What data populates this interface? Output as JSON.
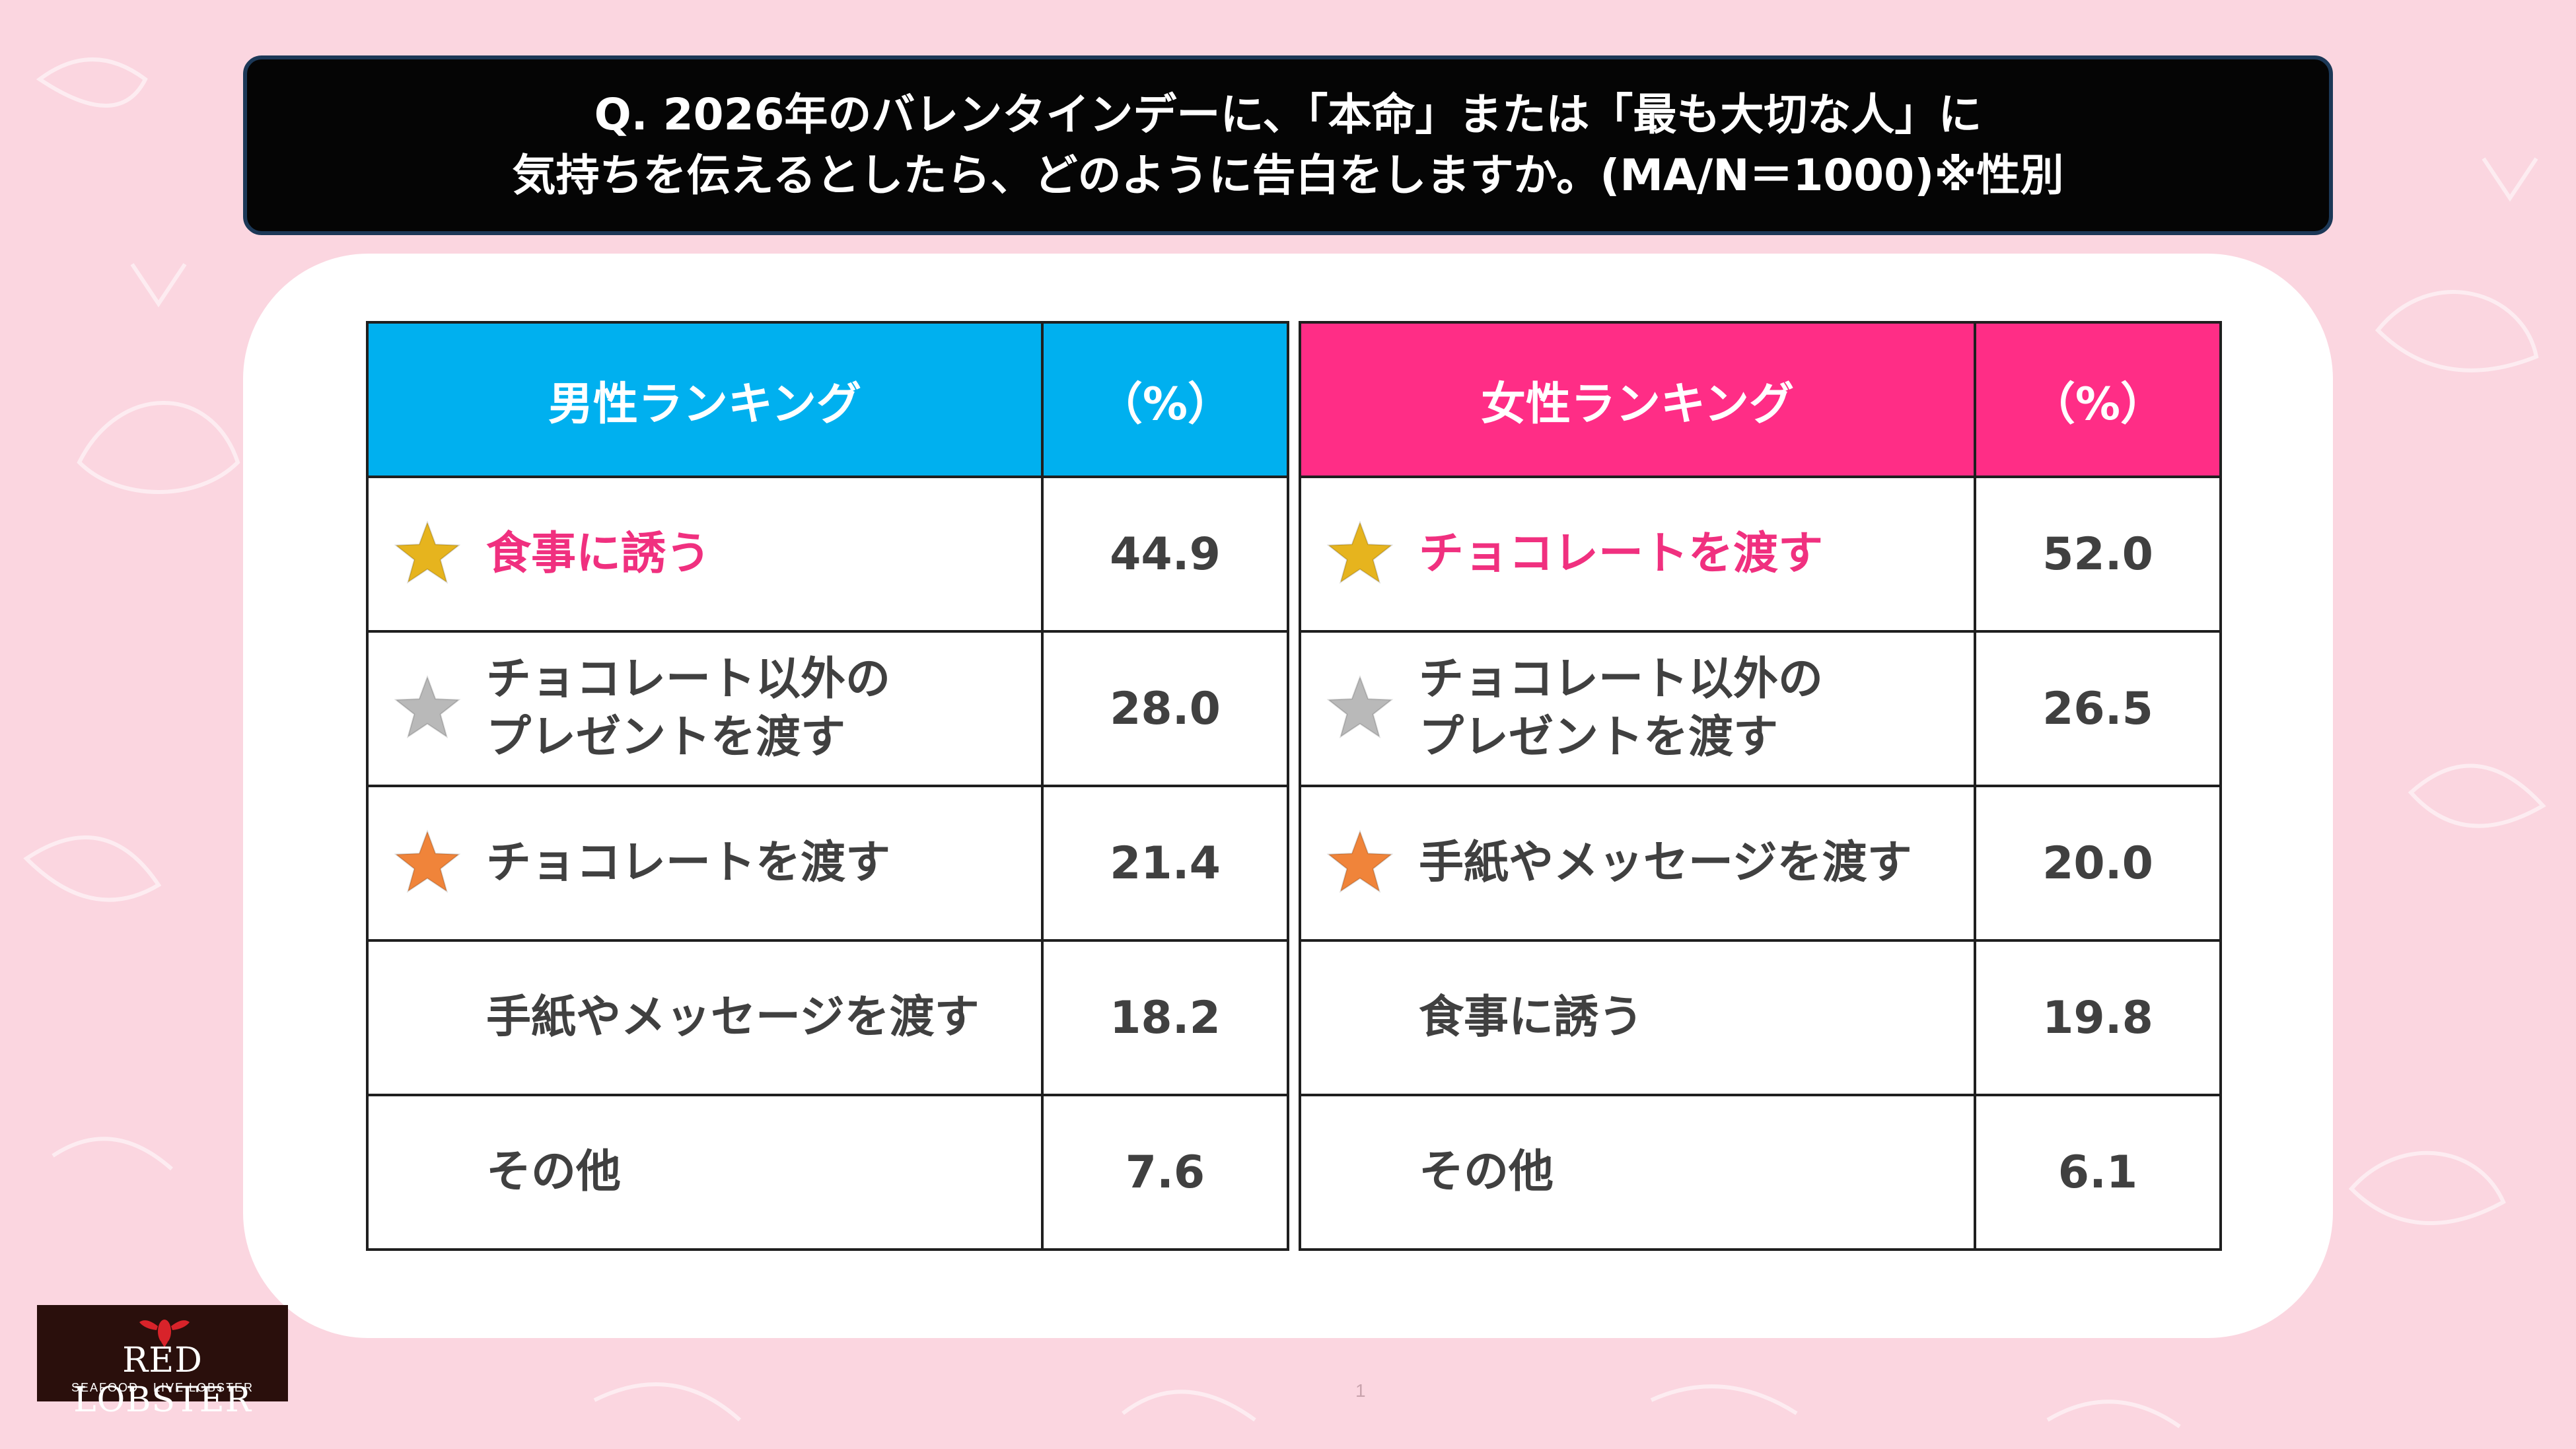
{
  "title": {
    "line1": "Q. 2026年のバレンタインデーに、「本命」または「最も大切な人」に",
    "line2": "気持ちを伝えるとしたら、どのように告白をしますか。(MA/N＝1000)※性別"
  },
  "chart_data": [
    {
      "type": "table",
      "title": "男性ランキング",
      "columns": [
        "男性ランキング",
        "（%）"
      ],
      "unit": "%",
      "header_color": "#00b0ef",
      "rows": [
        {
          "rank": 1,
          "medal": "gold",
          "label": "食事に誘う",
          "value": "44.9"
        },
        {
          "rank": 2,
          "medal": "silver",
          "label": "チョコレート以外の\nプレゼントを渡す",
          "value": "28.0"
        },
        {
          "rank": 3,
          "medal": "bronze",
          "label": "チョコレートを渡す",
          "value": "21.4"
        },
        {
          "rank": 4,
          "medal": "none",
          "label": "手紙やメッセージを渡す",
          "value": "18.2"
        },
        {
          "rank": 5,
          "medal": "none",
          "label": "その他",
          "value": "7.6"
        }
      ]
    },
    {
      "type": "table",
      "title": "女性ランキング",
      "columns": [
        "女性ランキング",
        "（%）"
      ],
      "unit": "%",
      "header_color": "#ff2d86",
      "rows": [
        {
          "rank": 1,
          "medal": "gold",
          "label": "チョコレートを渡す",
          "value": "52.0"
        },
        {
          "rank": 2,
          "medal": "silver",
          "label": "チョコレート以外の\nプレゼントを渡す",
          "value": "26.5"
        },
        {
          "rank": 3,
          "medal": "bronze",
          "label": "手紙やメッセージを渡す",
          "value": "20.0"
        },
        {
          "rank": 4,
          "medal": "none",
          "label": "食事に誘う",
          "value": "19.8"
        },
        {
          "rank": 5,
          "medal": "none",
          "label": "その他",
          "value": "6.1"
        }
      ]
    }
  ],
  "colors": {
    "background": "#fbd6e0",
    "top_item_text": "#f0307f",
    "gold_star": "#e6b41e",
    "silver_star": "#b9b9b9",
    "bronze_star": "#f0843a"
  },
  "logo": {
    "name": "RED LOBSTER",
    "tagline": "SEAFOOD · LIVE LOBSTER",
    "icon": "lobster-icon"
  },
  "page_number": "1"
}
